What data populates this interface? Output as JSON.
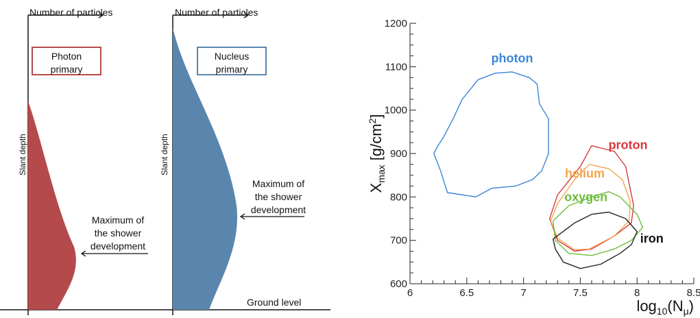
{
  "left_schematic": {
    "panel_photon": {
      "ylabel": "Number of particles",
      "xlabel": "Slant depth",
      "box_line1": "Photon",
      "box_line2": "primary",
      "annotation": [
        "Maximum of",
        "the shower",
        "development"
      ],
      "fill_color": "#b54a4c",
      "box_color": "#b54a4c"
    },
    "panel_nucleus": {
      "ylabel": "Number of particles",
      "xlabel": "Slant depth",
      "box_line1": "Nucleus",
      "box_line2": "primary",
      "annotation": [
        "Maximum of",
        "the shower",
        "development"
      ],
      "fill_color": "#5a86ad",
      "box_color": "#5a86ad"
    },
    "ground_label": "Ground level"
  },
  "chart_data": {
    "type": "scatter",
    "xlabel": "log10(Nμ)",
    "ylabel": "Xmax [g/cm2]",
    "xlim": [
      6,
      8.5
    ],
    "ylim": [
      600,
      1200
    ],
    "xticks": [
      "6",
      "6.5",
      "7",
      "7.5",
      "8",
      "8.5"
    ],
    "yticks": [
      "600",
      "700",
      "800",
      "900",
      "1000",
      "1100",
      "1200"
    ],
    "grid": false,
    "series": [
      {
        "name": "photon",
        "color": "#3a86d6",
        "points": [
          [
            6.21,
            900
          ],
          [
            6.27,
            860
          ],
          [
            6.33,
            810
          ],
          [
            6.58,
            800
          ],
          [
            6.72,
            820
          ],
          [
            6.93,
            825
          ],
          [
            7.08,
            840
          ],
          [
            7.16,
            860
          ],
          [
            7.22,
            900
          ],
          [
            7.22,
            980
          ],
          [
            7.14,
            1015
          ],
          [
            7.12,
            1060
          ],
          [
            7.05,
            1075
          ],
          [
            6.9,
            1088
          ],
          [
            6.75,
            1085
          ],
          [
            6.6,
            1070
          ],
          [
            6.46,
            1025
          ],
          [
            6.38,
            980
          ],
          [
            6.3,
            940
          ],
          [
            6.24,
            915
          ]
        ]
      },
      {
        "name": "proton",
        "color": "#d8393d",
        "points": [
          [
            7.3,
            805
          ],
          [
            7.5,
            870
          ],
          [
            7.6,
            918
          ],
          [
            7.8,
            905
          ],
          [
            7.9,
            870
          ],
          [
            7.97,
            780
          ],
          [
            7.95,
            740
          ],
          [
            7.8,
            710
          ],
          [
            7.6,
            680
          ],
          [
            7.45,
            675
          ],
          [
            7.3,
            700
          ],
          [
            7.23,
            750
          ]
        ]
      },
      {
        "name": "helium",
        "color": "#f1a64d",
        "points": [
          [
            7.3,
            785
          ],
          [
            7.45,
            840
          ],
          [
            7.58,
            875
          ],
          [
            7.75,
            865
          ],
          [
            7.87,
            840
          ],
          [
            7.94,
            790
          ],
          [
            7.93,
            745
          ],
          [
            7.8,
            710
          ],
          [
            7.58,
            680
          ],
          [
            7.45,
            678
          ],
          [
            7.3,
            705
          ],
          [
            7.24,
            745
          ]
        ]
      },
      {
        "name": "oxygen",
        "color": "#6cbd3c",
        "points": [
          [
            7.26,
            745
          ],
          [
            7.4,
            780
          ],
          [
            7.6,
            800
          ],
          [
            7.75,
            812
          ],
          [
            7.85,
            800
          ],
          [
            8.0,
            760
          ],
          [
            8.05,
            730
          ],
          [
            7.95,
            700
          ],
          [
            7.8,
            680
          ],
          [
            7.6,
            665
          ],
          [
            7.4,
            670
          ],
          [
            7.28,
            700
          ]
        ]
      },
      {
        "name": "iron",
        "color": "#222222",
        "points": [
          [
            7.26,
            703
          ],
          [
            7.45,
            740
          ],
          [
            7.6,
            760
          ],
          [
            7.75,
            765
          ],
          [
            7.9,
            750
          ],
          [
            8.0,
            720
          ],
          [
            7.95,
            690
          ],
          [
            7.85,
            670
          ],
          [
            7.68,
            645
          ],
          [
            7.5,
            635
          ],
          [
            7.35,
            650
          ],
          [
            7.28,
            680
          ]
        ]
      }
    ],
    "labels": [
      {
        "text": "photon",
        "color": "#3a86d6",
        "x": 6.9,
        "y": 1110
      },
      {
        "text": "proton",
        "color": "#d8393d",
        "x": 7.92,
        "y": 910
      },
      {
        "text": "helium",
        "color": "#f1a64d",
        "x": 7.54,
        "y": 845
      },
      {
        "text": "oxygen",
        "color": "#6cbd3c",
        "x": 7.55,
        "y": 790
      },
      {
        "text": "iron",
        "color": "#111111",
        "x": 8.13,
        "y": 695
      }
    ]
  }
}
